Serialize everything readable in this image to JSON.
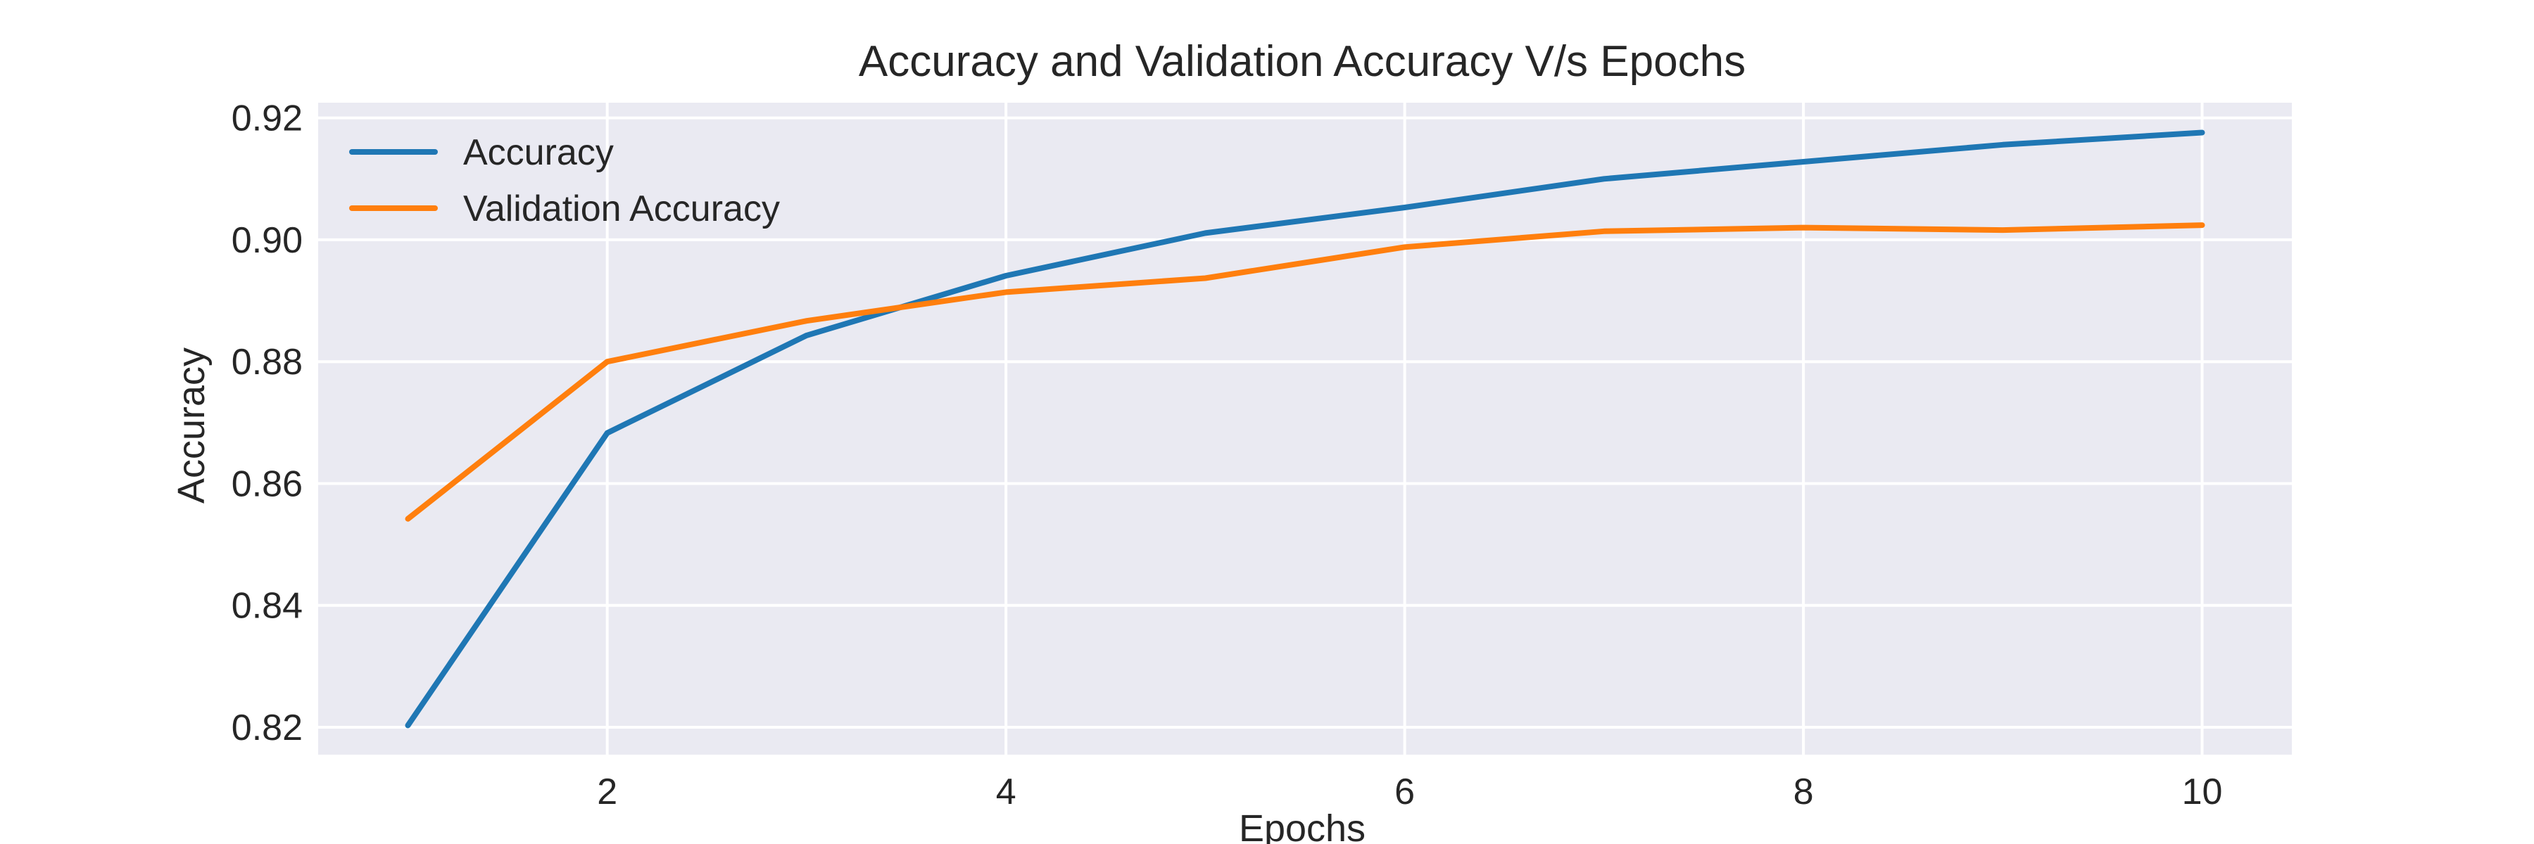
{
  "chart_data": {
    "type": "line",
    "title": "Accuracy and Validation Accuracy V/s Epochs",
    "xlabel": "Epochs",
    "ylabel": "Accuracy",
    "xlim": [
      0.55,
      10.45
    ],
    "ylim": [
      0.8155,
      0.9225
    ],
    "xticks": [
      2,
      4,
      6,
      8,
      10
    ],
    "yticks": [
      0.82,
      0.84,
      0.86,
      0.88,
      0.9,
      0.92
    ],
    "xtick_labels": [
      "2",
      "4",
      "6",
      "8",
      "10"
    ],
    "ytick_labels": [
      "0.82",
      "0.84",
      "0.86",
      "0.88",
      "0.90",
      "0.92"
    ],
    "grid": true,
    "legend": "top-left",
    "x": [
      1,
      2,
      3,
      4,
      5,
      6,
      7,
      8,
      9,
      10
    ],
    "series": [
      {
        "name": "Accuracy",
        "color": "#1f77b4",
        "values": [
          0.8203,
          0.8683,
          0.8843,
          0.8941,
          0.9011,
          0.9053,
          0.91,
          0.9128,
          0.9156,
          0.9176
        ]
      },
      {
        "name": "Validation Accuracy",
        "color": "#ff7f0e",
        "values": [
          0.8542,
          0.88,
          0.8867,
          0.8914,
          0.8937,
          0.8988,
          0.9014,
          0.902,
          0.9016,
          0.9024
        ]
      }
    ]
  }
}
